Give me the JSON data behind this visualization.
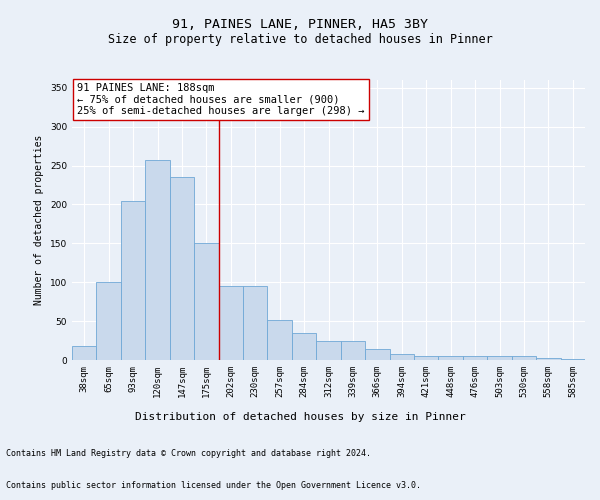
{
  "title1": "91, PAINES LANE, PINNER, HA5 3BY",
  "title2": "Size of property relative to detached houses in Pinner",
  "xlabel": "Distribution of detached houses by size in Pinner",
  "ylabel": "Number of detached properties",
  "bar_values": [
    18,
    100,
    205,
    257,
    235,
    150,
    95,
    95,
    52,
    35,
    25,
    25,
    14,
    8,
    5,
    5,
    5,
    5,
    5,
    2,
    1
  ],
  "bar_labels": [
    "38sqm",
    "65sqm",
    "93sqm",
    "120sqm",
    "147sqm",
    "175sqm",
    "202sqm",
    "230sqm",
    "257sqm",
    "284sqm",
    "312sqm",
    "339sqm",
    "366sqm",
    "394sqm",
    "421sqm",
    "448sqm",
    "476sqm",
    "503sqm",
    "530sqm",
    "558sqm",
    "585sqm"
  ],
  "bar_color": "#c9d9ec",
  "bar_edge_color": "#6fa8d6",
  "bar_linewidth": 0.6,
  "vline_x": 5.5,
  "vline_color": "#cc0000",
  "vline_linewidth": 1.0,
  "annotation_text": "91 PAINES LANE: 188sqm\n← 75% of detached houses are smaller (900)\n25% of semi-detached houses are larger (298) →",
  "box_edge_color": "#cc0000",
  "ylim": [
    0,
    360
  ],
  "yticks": [
    0,
    50,
    100,
    150,
    200,
    250,
    300,
    350
  ],
  "bg_color": "#eaf0f8",
  "plot_bg_color": "#eaf0f8",
  "grid_color": "#ffffff",
  "footer_line1": "Contains HM Land Registry data © Crown copyright and database right 2024.",
  "footer_line2": "Contains public sector information licensed under the Open Government Licence v3.0.",
  "title1_fontsize": 9.5,
  "title2_fontsize": 8.5,
  "xlabel_fontsize": 8,
  "ylabel_fontsize": 7,
  "tick_fontsize": 6.5,
  "annotation_fontsize": 7.5,
  "footer_fontsize": 6
}
